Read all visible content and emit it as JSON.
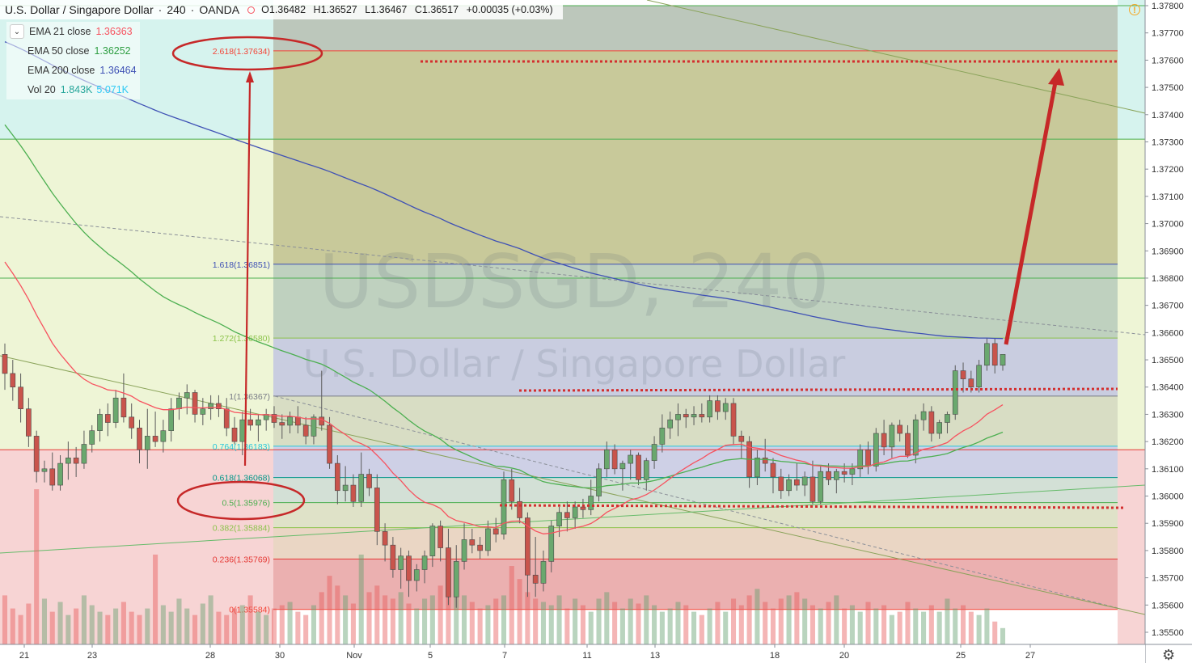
{
  "header": {
    "symbol": "U.S. Dollar / Singapore Dollar",
    "interval": "240",
    "broker": "OANDA",
    "open": "O1.36482",
    "high": "H1.36527",
    "low": "L1.36467",
    "close": "C1.36517",
    "change": "+0.00035 (+0.03%)"
  },
  "legend": [
    {
      "label": "EMA 21 close",
      "value": "1.36363",
      "color": "#f7525f"
    },
    {
      "label": "EMA 50 close",
      "value": "1.36252",
      "color": "#4caf50"
    },
    {
      "label": "EMA 200 close",
      "value": "1.36464",
      "color": "#3f51b5"
    },
    {
      "label": "Vol 20",
      "value": "1.843K",
      "value2": "5.071K",
      "color": "#26a69a",
      "color2": "#2cc9f5"
    }
  ],
  "watermark": {
    "line1": "USDSGD, 240",
    "line2": "U.S. Dollar / Singapore Dollar"
  },
  "chart_data": {
    "type": "candlestick",
    "y_axis_ticks": [
      "1.37800",
      "1.37700",
      "1.37600",
      "1.37500",
      "1.37400",
      "1.37300",
      "1.37200",
      "1.37100",
      "1.37000",
      "1.36900",
      "1.36800",
      "1.36700",
      "1.36600",
      "1.36500",
      "1.36400",
      "1.36300",
      "1.36200",
      "1.36100",
      "1.36000",
      "1.35900",
      "1.35800",
      "1.35700",
      "1.35600",
      "1.35500"
    ],
    "ylim": [
      1.3545,
      1.378
    ],
    "x_axis_ticks": [
      "21",
      "23",
      "28",
      "30",
      "Nov",
      "5",
      "7",
      "11",
      "13",
      "18",
      "20",
      "25",
      "27"
    ],
    "fib_levels": [
      {
        "label": "0(1.35584)",
        "value": 1.35584,
        "color": "#f44336"
      },
      {
        "label": "0.236(1.35769)",
        "value": 1.35769,
        "color": "#e53935"
      },
      {
        "label": "0.382(1.35884)",
        "value": 1.35884,
        "color": "#8bc34a"
      },
      {
        "label": "0.5(1.35976)",
        "value": 1.35976,
        "color": "#4caf50"
      },
      {
        "label": "0.618(1.36068)",
        "value": 1.36068,
        "color": "#009688"
      },
      {
        "label": "0.764(1.36183)",
        "value": 1.36183,
        "color": "#26c6da"
      },
      {
        "label": "1(1.36367)",
        "value": 1.36367,
        "color": "#787b86"
      },
      {
        "label": "1.272(1.36580)",
        "value": 1.3658,
        "color": "#8bc34a"
      },
      {
        "label": "1.618(1.36851)",
        "value": 1.36851,
        "color": "#3f51b5"
      },
      {
        "label": "2.618(1.37634)",
        "value": 1.37634,
        "color": "#f44336"
      }
    ],
    "horizontal_lines": [
      1.3617,
      1.368,
      1.3731,
      1.378
    ],
    "candles": [
      [
        1.3652,
        1.3656,
        1.3639,
        1.3645
      ],
      [
        1.3645,
        1.365,
        1.3635,
        1.364
      ],
      [
        1.364,
        1.3645,
        1.3627,
        1.3632
      ],
      [
        1.3632,
        1.3636,
        1.3618,
        1.3622
      ],
      [
        1.3622,
        1.3624,
        1.3605,
        1.3609
      ],
      [
        1.3609,
        1.3613,
        1.3605,
        1.361
      ],
      [
        1.361,
        1.3616,
        1.3602,
        1.3604
      ],
      [
        1.3604,
        1.3615,
        1.3602,
        1.3612
      ],
      [
        1.3612,
        1.362,
        1.3606,
        1.3614
      ],
      [
        1.3614,
        1.3618,
        1.3607,
        1.3612
      ],
      [
        1.3612,
        1.3624,
        1.361,
        1.3619
      ],
      [
        1.3619,
        1.3626,
        1.3616,
        1.3624
      ],
      [
        1.3624,
        1.3632,
        1.362,
        1.363
      ],
      [
        1.363,
        1.3634,
        1.3622,
        1.3627
      ],
      [
        1.3627,
        1.3639,
        1.3625,
        1.3636
      ],
      [
        1.3636,
        1.3645,
        1.3627,
        1.3629
      ],
      [
        1.3629,
        1.3634,
        1.3621,
        1.3625
      ],
      [
        1.3625,
        1.3628,
        1.3612,
        1.3617
      ],
      [
        1.3617,
        1.3632,
        1.361,
        1.3622
      ],
      [
        1.3622,
        1.3631,
        1.3618,
        1.362
      ],
      [
        1.362,
        1.3628,
        1.3616,
        1.3624
      ],
      [
        1.3624,
        1.3636,
        1.362,
        1.3632
      ],
      [
        1.3632,
        1.3638,
        1.3628,
        1.3636
      ],
      [
        1.3636,
        1.3641,
        1.363,
        1.3638
      ],
      [
        1.3638,
        1.3639,
        1.3627,
        1.363
      ],
      [
        1.363,
        1.3636,
        1.3626,
        1.3632
      ],
      [
        1.3632,
        1.3637,
        1.3628,
        1.3634
      ],
      [
        1.3634,
        1.3637,
        1.3629,
        1.3632
      ],
      [
        1.3632,
        1.3636,
        1.3622,
        1.3625
      ],
      [
        1.3625,
        1.3629,
        1.3619,
        1.362
      ],
      [
        1.362,
        1.3631,
        1.3615,
        1.3628
      ],
      [
        1.3628,
        1.3632,
        1.3624,
        1.3626
      ],
      [
        1.3626,
        1.363,
        1.362,
        1.3628
      ],
      [
        1.3628,
        1.3632,
        1.3624,
        1.363
      ],
      [
        1.363,
        1.3633,
        1.3625,
        1.3627
      ],
      [
        1.3627,
        1.363,
        1.3621,
        1.3626
      ],
      [
        1.3626,
        1.3631,
        1.3623,
        1.3629
      ],
      [
        1.3629,
        1.3633,
        1.3623,
        1.3626
      ],
      [
        1.3626,
        1.3629,
        1.3619,
        1.3622
      ],
      [
        1.3622,
        1.363,
        1.3619,
        1.3629
      ],
      [
        1.3629,
        1.3646,
        1.3624,
        1.3626
      ],
      [
        1.3626,
        1.3629,
        1.361,
        1.3612
      ],
      [
        1.3612,
        1.3615,
        1.3597,
        1.3602
      ],
      [
        1.3602,
        1.3611,
        1.3598,
        1.3604
      ],
      [
        1.3604,
        1.3608,
        1.3596,
        1.3598
      ],
      [
        1.3598,
        1.3616,
        1.3596,
        1.3608
      ],
      [
        1.3608,
        1.361,
        1.36,
        1.3603
      ],
      [
        1.3603,
        1.3608,
        1.3582,
        1.3587
      ],
      [
        1.3587,
        1.359,
        1.3576,
        1.3582
      ],
      [
        1.3582,
        1.3585,
        1.357,
        1.3573
      ],
      [
        1.3573,
        1.3581,
        1.3566,
        1.3578
      ],
      [
        1.3578,
        1.358,
        1.3563,
        1.3569
      ],
      [
        1.3569,
        1.3575,
        1.3565,
        1.3573
      ],
      [
        1.3573,
        1.358,
        1.3568,
        1.3578
      ],
      [
        1.3578,
        1.359,
        1.3574,
        1.3589
      ],
      [
        1.3589,
        1.3591,
        1.3576,
        1.3581
      ],
      [
        1.3581,
        1.3588,
        1.356,
        1.3563
      ],
      [
        1.3563,
        1.3582,
        1.3559,
        1.3576
      ],
      [
        1.3576,
        1.359,
        1.3573,
        1.3584
      ],
      [
        1.3584,
        1.3588,
        1.3579,
        1.3582
      ],
      [
        1.3582,
        1.3585,
        1.3577,
        1.358
      ],
      [
        1.358,
        1.3591,
        1.3578,
        1.3588
      ],
      [
        1.3588,
        1.3592,
        1.3583,
        1.3586
      ],
      [
        1.3586,
        1.3609,
        1.3584,
        1.3606
      ],
      [
        1.3606,
        1.361,
        1.3595,
        1.3598
      ],
      [
        1.3598,
        1.3603,
        1.359,
        1.3592
      ],
      [
        1.3592,
        1.3594,
        1.3563,
        1.3571
      ],
      [
        1.3571,
        1.3585,
        1.3563,
        1.3568
      ],
      [
        1.3568,
        1.358,
        1.3565,
        1.3576
      ],
      [
        1.3576,
        1.3591,
        1.3572,
        1.3589
      ],
      [
        1.3589,
        1.3596,
        1.3585,
        1.3594
      ],
      [
        1.3594,
        1.3598,
        1.3587,
        1.3592
      ],
      [
        1.3592,
        1.3598,
        1.3588,
        1.3596
      ],
      [
        1.3596,
        1.3599,
        1.3592,
        1.3595
      ],
      [
        1.3595,
        1.3606,
        1.3593,
        1.36
      ],
      [
        1.36,
        1.3612,
        1.3598,
        1.361
      ],
      [
        1.361,
        1.362,
        1.3607,
        1.3617
      ],
      [
        1.3617,
        1.3619,
        1.3608,
        1.361
      ],
      [
        1.361,
        1.3613,
        1.3602,
        1.3612
      ],
      [
        1.3612,
        1.3617,
        1.3606,
        1.3615
      ],
      [
        1.3615,
        1.3616,
        1.3604,
        1.3606
      ],
      [
        1.3606,
        1.3614,
        1.3602,
        1.3613
      ],
      [
        1.3613,
        1.3622,
        1.361,
        1.3619
      ],
      [
        1.3619,
        1.363,
        1.3616,
        1.3625
      ],
      [
        1.3625,
        1.3631,
        1.3621,
        1.3628
      ],
      [
        1.3628,
        1.3634,
        1.3622,
        1.363
      ],
      [
        1.363,
        1.3632,
        1.3625,
        1.3629
      ],
      [
        1.3629,
        1.3633,
        1.3626,
        1.363
      ],
      [
        1.363,
        1.3634,
        1.3627,
        1.3629
      ],
      [
        1.3629,
        1.3637,
        1.3627,
        1.3635
      ],
      [
        1.3635,
        1.3637,
        1.3628,
        1.3631
      ],
      [
        1.3631,
        1.3636,
        1.3628,
        1.3634
      ],
      [
        1.3634,
        1.3636,
        1.3619,
        1.3622
      ],
      [
        1.3622,
        1.3624,
        1.3614,
        1.362
      ],
      [
        1.362,
        1.3622,
        1.3603,
        1.3607
      ],
      [
        1.3607,
        1.3617,
        1.3604,
        1.3614
      ],
      [
        1.3614,
        1.3621,
        1.3609,
        1.3612
      ],
      [
        1.3612,
        1.3614,
        1.3601,
        1.3607
      ],
      [
        1.3607,
        1.361,
        1.3599,
        1.3602
      ],
      [
        1.3602,
        1.3608,
        1.36,
        1.3606
      ],
      [
        1.3606,
        1.3612,
        1.3602,
        1.3604
      ],
      [
        1.3604,
        1.3609,
        1.36,
        1.3607
      ],
      [
        1.3607,
        1.3613,
        1.3597,
        1.3598
      ],
      [
        1.3598,
        1.3611,
        1.3597,
        1.3609
      ],
      [
        1.3609,
        1.3612,
        1.3604,
        1.3606
      ],
      [
        1.3606,
        1.361,
        1.3601,
        1.3609
      ],
      [
        1.3609,
        1.3612,
        1.3605,
        1.3608
      ],
      [
        1.3608,
        1.3612,
        1.3604,
        1.361
      ],
      [
        1.361,
        1.3619,
        1.3607,
        1.3617
      ],
      [
        1.3617,
        1.362,
        1.3608,
        1.3611
      ],
      [
        1.3611,
        1.3625,
        1.3609,
        1.3623
      ],
      [
        1.3623,
        1.3628,
        1.3615,
        1.3618
      ],
      [
        1.3618,
        1.3627,
        1.3614,
        1.3626
      ],
      [
        1.3626,
        1.3628,
        1.362,
        1.3623
      ],
      [
        1.3623,
        1.3626,
        1.3614,
        1.3615
      ],
      [
        1.3615,
        1.363,
        1.3612,
        1.3628
      ],
      [
        1.3628,
        1.3634,
        1.3624,
        1.3631
      ],
      [
        1.3631,
        1.3633,
        1.362,
        1.3623
      ],
      [
        1.3623,
        1.3628,
        1.3621,
        1.3627
      ],
      [
        1.3627,
        1.3631,
        1.3623,
        1.363
      ],
      [
        1.363,
        1.3648,
        1.3628,
        1.3646
      ],
      [
        1.3646,
        1.3649,
        1.3638,
        1.3643
      ],
      [
        1.3643,
        1.3646,
        1.3638,
        1.364
      ],
      [
        1.364,
        1.365,
        1.3638,
        1.3648
      ],
      [
        1.3648,
        1.3658,
        1.3646,
        1.3656
      ],
      [
        1.3656,
        1.3658,
        1.3645,
        1.3648
      ],
      [
        1.3648,
        1.3652,
        1.3646,
        1.3652
      ]
    ],
    "volumes": [
      0.3,
      0.22,
      0.18,
      0.25,
      0.95,
      0.28,
      0.2,
      0.26,
      0.18,
      0.22,
      0.3,
      0.24,
      0.2,
      0.18,
      0.22,
      0.26,
      0.2,
      0.18,
      0.22,
      0.55,
      0.24,
      0.2,
      0.28,
      0.22,
      0.18,
      0.25,
      0.3,
      0.2,
      0.18,
      0.22,
      0.24,
      0.3,
      0.2,
      0.18,
      0.22,
      0.24,
      0.26,
      0.2,
      0.18,
      0.24,
      0.32,
      0.42,
      0.36,
      0.3,
      0.25,
      0.55,
      0.32,
      0.36,
      0.3,
      0.28,
      0.32,
      0.25,
      0.22,
      0.28,
      0.3,
      0.36,
      0.4,
      0.32,
      0.3,
      0.26,
      0.22,
      0.24,
      0.28,
      0.3,
      0.48,
      0.4,
      0.32,
      0.28,
      0.26,
      0.24,
      0.3,
      0.22,
      0.28,
      0.24,
      0.2,
      0.28,
      0.32,
      0.26,
      0.22,
      0.28,
      0.25,
      0.3,
      0.24,
      0.2,
      0.22,
      0.26,
      0.24,
      0.2,
      0.18,
      0.22,
      0.26,
      0.2,
      0.28,
      0.24,
      0.3,
      0.34,
      0.26,
      0.22,
      0.28,
      0.3,
      0.32,
      0.28,
      0.24,
      0.22,
      0.26,
      0.3,
      0.22,
      0.24,
      0.2,
      0.26,
      0.22,
      0.24,
      0.18,
      0.2,
      0.26,
      0.22,
      0.2,
      0.24,
      0.2,
      0.28,
      0.22,
      0.24,
      0.2,
      0.18,
      0.22,
      0.14,
      0.1
    ]
  }
}
